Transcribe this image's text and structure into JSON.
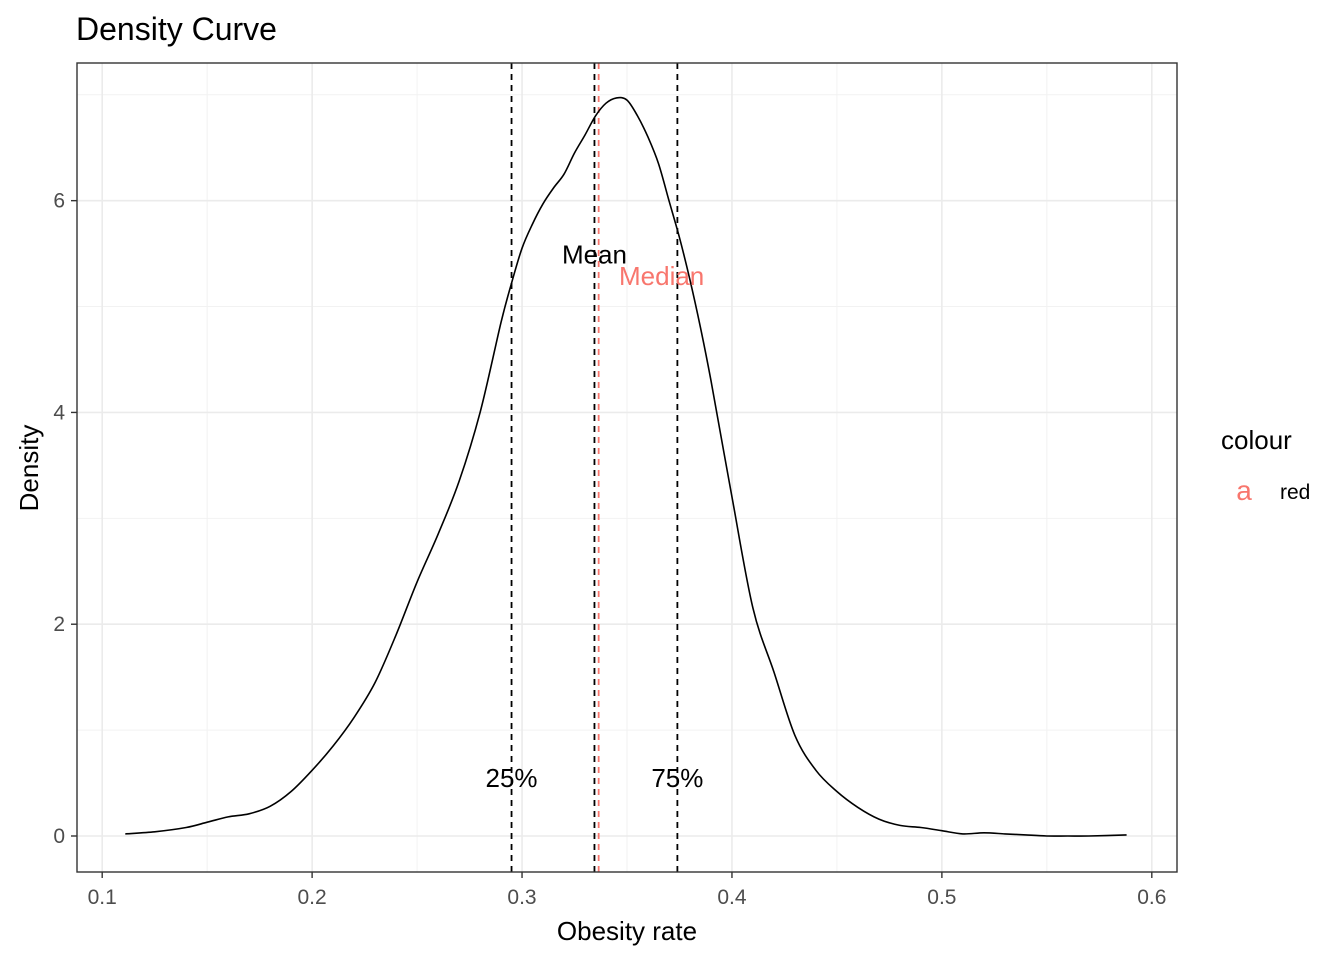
{
  "chart_data": {
    "type": "line",
    "title": "Density Curve",
    "xlabel": "Obesity rate",
    "ylabel": "Density",
    "xlim": [
      0.088,
      0.612
    ],
    "ylim": [
      -0.34,
      7.3
    ],
    "x_ticks": [
      0.1,
      0.2,
      0.3,
      0.4,
      0.5,
      0.6
    ],
    "x_tick_labels": [
      "0.1",
      "0.2",
      "0.3",
      "0.4",
      "0.5",
      "0.6"
    ],
    "y_ticks": [
      0,
      2,
      4,
      6
    ],
    "y_tick_labels": [
      "0",
      "2",
      "4",
      "6"
    ],
    "grid": true,
    "series": [
      {
        "x": [
          0.111,
          0.125,
          0.14,
          0.15,
          0.16,
          0.17,
          0.18,
          0.19,
          0.2,
          0.21,
          0.22,
          0.23,
          0.24,
          0.25,
          0.26,
          0.27,
          0.28,
          0.29,
          0.295,
          0.3,
          0.305,
          0.31,
          0.315,
          0.32,
          0.325,
          0.33,
          0.335,
          0.34,
          0.345,
          0.35,
          0.355,
          0.36,
          0.365,
          0.37,
          0.375,
          0.38,
          0.385,
          0.39,
          0.4,
          0.41,
          0.42,
          0.43,
          0.44,
          0.45,
          0.46,
          0.47,
          0.48,
          0.49,
          0.5,
          0.51,
          0.52,
          0.53,
          0.54,
          0.55,
          0.56,
          0.57,
          0.588
        ],
        "y": [
          0.02,
          0.04,
          0.08,
          0.13,
          0.18,
          0.21,
          0.28,
          0.42,
          0.62,
          0.85,
          1.12,
          1.45,
          1.9,
          2.4,
          2.85,
          3.35,
          4.0,
          4.85,
          5.22,
          5.55,
          5.78,
          5.97,
          6.12,
          6.25,
          6.45,
          6.62,
          6.8,
          6.92,
          6.97,
          6.95,
          6.8,
          6.6,
          6.35,
          6.0,
          5.65,
          5.25,
          4.8,
          4.3,
          3.2,
          2.15,
          1.55,
          0.95,
          0.62,
          0.42,
          0.27,
          0.16,
          0.1,
          0.08,
          0.05,
          0.02,
          0.03,
          0.02,
          0.01,
          0.0,
          0.0,
          0.0,
          0.01
        ],
        "color": "#000000"
      }
    ],
    "vlines": [
      {
        "x": 0.295,
        "color": "#000000"
      },
      {
        "x": 0.3345,
        "color": "#000000"
      },
      {
        "x": 0.3365,
        "color": "#F8766D"
      },
      {
        "x": 0.374,
        "color": "#000000"
      }
    ],
    "annotations": [
      {
        "text": "Mean",
        "x": 0.3345,
        "y": 5.47,
        "color": "#000000"
      },
      {
        "text": "Median",
        "x": 0.3665,
        "y": 5.27,
        "color": "#F8766D"
      },
      {
        "text": "25%",
        "x": 0.295,
        "y": 0.53,
        "color": "#000000"
      },
      {
        "text": "75%",
        "x": 0.374,
        "y": 0.53,
        "color": "#000000"
      }
    ],
    "legend": {
      "title": "colour",
      "key_symbol": "a",
      "key_color": "#F8766D",
      "label": "red",
      "placement": "right"
    }
  }
}
